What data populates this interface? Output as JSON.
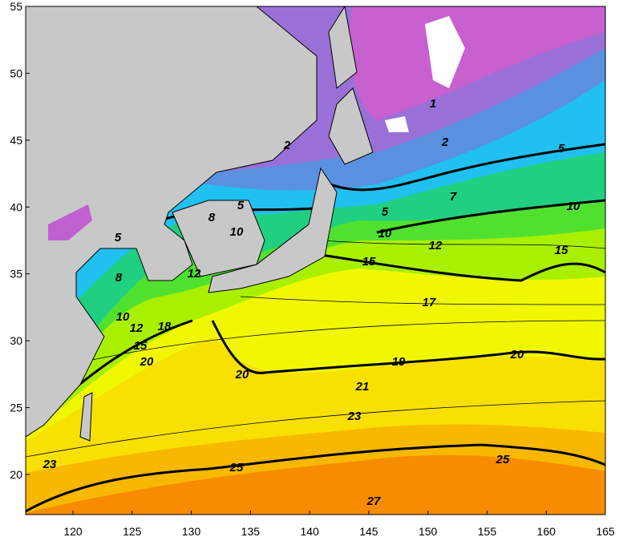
{
  "map": {
    "xlim": [
      116,
      165
    ],
    "ylim": [
      17,
      55
    ],
    "xticks": [
      120,
      125,
      130,
      135,
      140,
      145,
      150,
      155,
      160,
      165
    ],
    "yticks": [
      20,
      25,
      30,
      35,
      40,
      45,
      50,
      55
    ],
    "contour_labels": [
      "1",
      "2",
      "2",
      "5",
      "5",
      "7",
      "8",
      "10",
      "10",
      "5",
      "10",
      "12",
      "15",
      "15",
      "5",
      "8",
      "12",
      "10",
      "12",
      "15",
      "18",
      "20",
      "17",
      "19",
      "20",
      "20",
      "21",
      "23",
      "25",
      "25",
      "23",
      "27"
    ]
  }
}
